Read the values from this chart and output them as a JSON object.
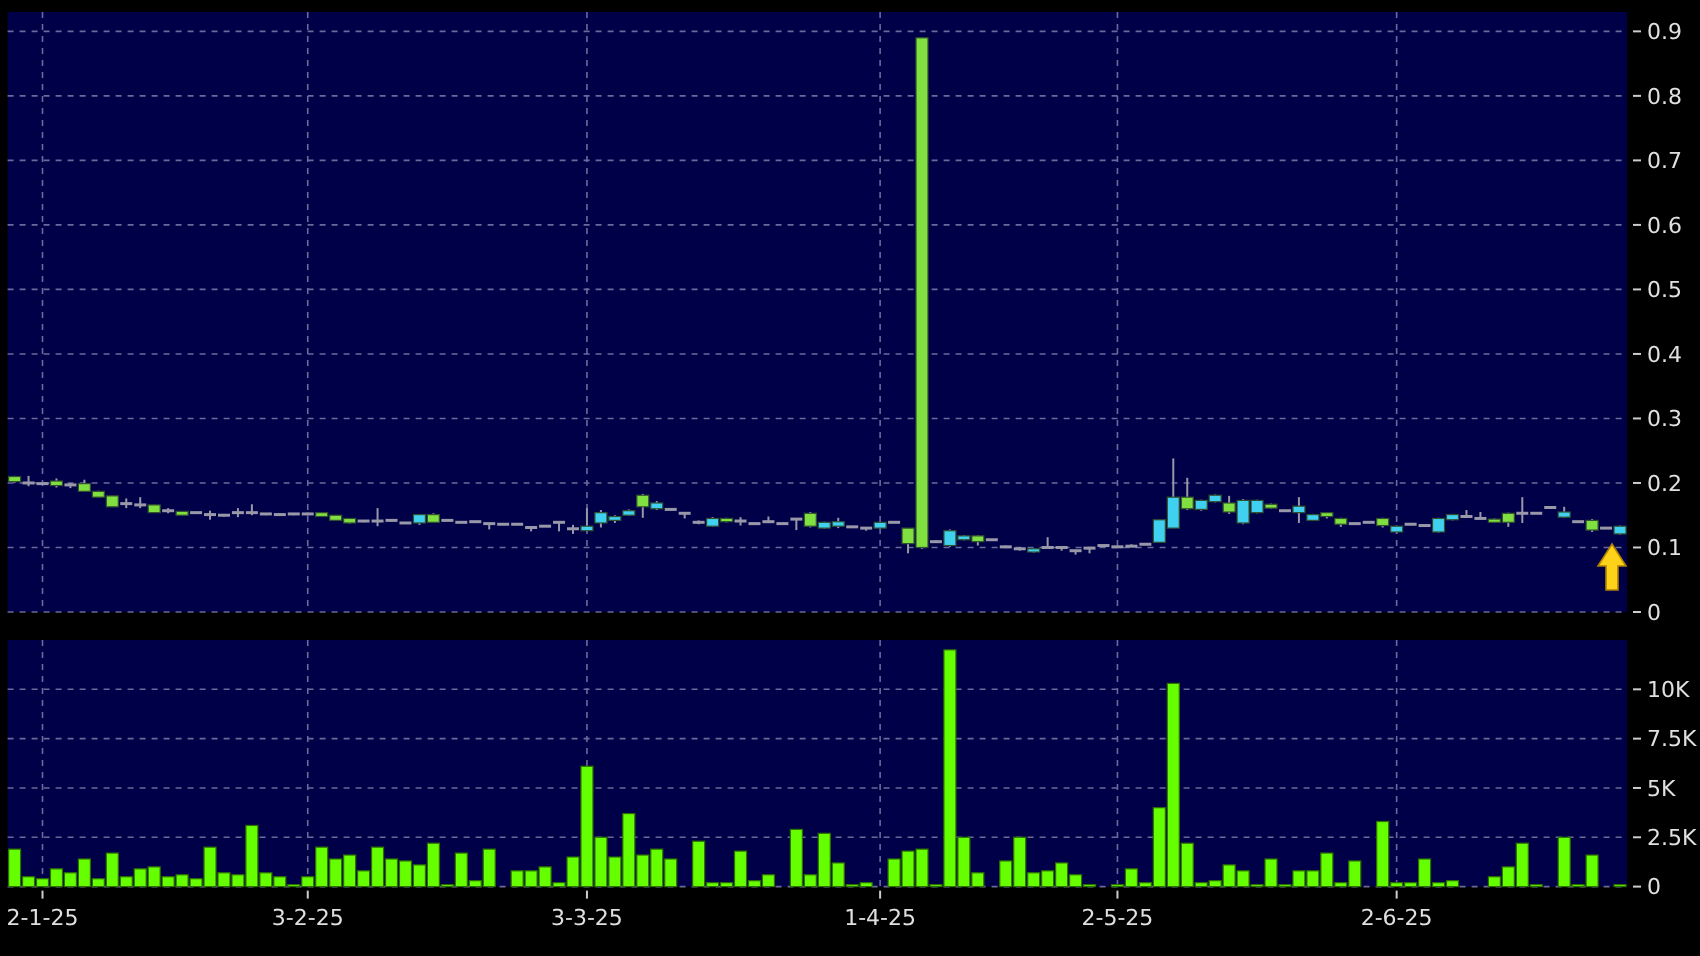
{
  "chart_data": [
    {
      "type": "candlestick",
      "tick_labels": "y",
      "grid": true,
      "ylim": [
        0,
        0.93
      ],
      "yticks": [
        0,
        0.1,
        0.2,
        0.3,
        0.4,
        0.5,
        0.6,
        0.7,
        0.8,
        0.9
      ],
      "categories": [
        null,
        null,
        null,
        null,
        null,
        null,
        null,
        null,
        null,
        null,
        null,
        null,
        null,
        null,
        null,
        null,
        null,
        null,
        null,
        null,
        null,
        null,
        null,
        null,
        null,
        null,
        null,
        null,
        null,
        null,
        null,
        null,
        null,
        null,
        null,
        null,
        null,
        null,
        null,
        null,
        null,
        null,
        null,
        null,
        null,
        null,
        null,
        null,
        null,
        null,
        null,
        null,
        null,
        null,
        null,
        null,
        null,
        null,
        null,
        null,
        null,
        null,
        null,
        null,
        null,
        null,
        null,
        null,
        null,
        null,
        null,
        null,
        null,
        null,
        null,
        null,
        null,
        null,
        null,
        null,
        null,
        null,
        null,
        null,
        null,
        null,
        null,
        null,
        null,
        null,
        null,
        null,
        null,
        null,
        null,
        null,
        null,
        null,
        null,
        null,
        null,
        null,
        null,
        null,
        null,
        null,
        null,
        null,
        null,
        null,
        null,
        null,
        null,
        null,
        null,
        null
      ],
      "ohlc": [
        [
          0.21,
          0.211,
          0.2,
          0.202
        ],
        [
          0.2,
          0.211,
          0.195,
          0.2
        ],
        [
          0.199,
          0.201,
          0.197,
          0.199
        ],
        [
          0.203,
          0.207,
          0.193,
          0.196
        ],
        [
          0.197,
          0.2,
          0.192,
          0.197
        ],
        [
          0.199,
          0.205,
          0.187,
          0.187
        ],
        [
          0.187,
          0.188,
          0.178,
          0.178
        ],
        [
          0.18,
          0.18,
          0.163,
          0.163
        ],
        [
          0.168,
          0.176,
          0.161,
          0.168
        ],
        [
          0.166,
          0.178,
          0.161,
          0.166
        ],
        [
          0.166,
          0.166,
          0.154,
          0.154
        ],
        [
          0.157,
          0.161,
          0.153,
          0.157
        ],
        [
          0.156,
          0.156,
          0.15,
          0.15
        ],
        [
          0.154,
          0.155,
          0.153,
          0.154
        ],
        [
          0.151,
          0.157,
          0.143,
          0.151
        ],
        [
          0.15,
          0.152,
          0.148,
          0.15
        ],
        [
          0.154,
          0.161,
          0.147,
          0.154
        ],
        [
          0.154,
          0.167,
          0.15,
          0.154
        ],
        [
          0.152,
          0.153,
          0.15,
          0.152
        ],
        [
          0.151,
          0.153,
          0.149,
          0.151
        ],
        [
          0.152,
          0.153,
          0.15,
          0.152
        ],
        [
          0.152,
          0.154,
          0.15,
          0.152
        ],
        [
          0.154,
          0.154,
          0.148,
          0.148
        ],
        [
          0.15,
          0.15,
          0.142,
          0.142
        ],
        [
          0.145,
          0.145,
          0.137,
          0.138
        ],
        [
          0.141,
          0.142,
          0.139,
          0.141
        ],
        [
          0.141,
          0.161,
          0.133,
          0.141
        ],
        [
          0.142,
          0.143,
          0.14,
          0.142
        ],
        [
          0.138,
          0.139,
          0.137,
          0.138
        ],
        [
          0.138,
          0.151,
          0.135,
          0.151
        ],
        [
          0.151,
          0.153,
          0.139,
          0.139
        ],
        [
          0.142,
          0.143,
          0.141,
          0.142
        ],
        [
          0.139,
          0.14,
          0.138,
          0.139
        ],
        [
          0.14,
          0.141,
          0.139,
          0.14
        ],
        [
          0.137,
          0.138,
          0.128,
          0.137
        ],
        [
          0.136,
          0.137,
          0.135,
          0.136
        ],
        [
          0.136,
          0.137,
          0.135,
          0.136
        ],
        [
          0.131,
          0.132,
          0.125,
          0.131
        ],
        [
          0.133,
          0.134,
          0.132,
          0.133
        ],
        [
          0.139,
          0.14,
          0.125,
          0.139
        ],
        [
          0.129,
          0.135,
          0.121,
          0.129
        ],
        [
          0.126,
          0.161,
          0.125,
          0.133
        ],
        [
          0.138,
          0.158,
          0.131,
          0.154
        ],
        [
          0.142,
          0.15,
          0.138,
          0.148
        ],
        [
          0.15,
          0.159,
          0.149,
          0.157
        ],
        [
          0.181,
          0.183,
          0.146,
          0.163
        ],
        [
          0.16,
          0.172,
          0.158,
          0.169
        ],
        [
          0.159,
          0.16,
          0.158,
          0.159
        ],
        [
          0.153,
          0.155,
          0.145,
          0.153
        ],
        [
          0.139,
          0.142,
          0.136,
          0.139
        ],
        [
          0.133,
          0.147,
          0.132,
          0.145
        ],
        [
          0.145,
          0.146,
          0.139,
          0.14
        ],
        [
          0.141,
          0.147,
          0.134,
          0.141
        ],
        [
          0.137,
          0.138,
          0.136,
          0.137
        ],
        [
          0.14,
          0.148,
          0.139,
          0.14
        ],
        [
          0.137,
          0.138,
          0.136,
          0.137
        ],
        [
          0.144,
          0.145,
          0.127,
          0.144
        ],
        [
          0.153,
          0.155,
          0.131,
          0.133
        ],
        [
          0.13,
          0.14,
          0.129,
          0.139
        ],
        [
          0.133,
          0.146,
          0.13,
          0.14
        ],
        [
          0.132,
          0.133,
          0.131,
          0.132
        ],
        [
          0.13,
          0.131,
          0.126,
          0.13
        ],
        [
          0.13,
          0.14,
          0.129,
          0.139
        ],
        [
          0.139,
          0.14,
          0.138,
          0.139
        ],
        [
          0.13,
          0.13,
          0.091,
          0.106
        ],
        [
          0.89,
          0.89,
          0.098,
          0.1
        ],
        [
          0.109,
          0.111,
          0.108,
          0.109
        ],
        [
          0.103,
          0.128,
          0.101,
          0.126
        ],
        [
          0.112,
          0.119,
          0.111,
          0.118
        ],
        [
          0.118,
          0.119,
          0.103,
          0.109
        ],
        [
          0.112,
          0.113,
          0.111,
          0.112
        ],
        [
          0.101,
          0.103,
          0.1,
          0.101
        ],
        [
          0.098,
          0.1,
          0.095,
          0.098
        ],
        [
          0.093,
          0.099,
          0.092,
          0.098
        ],
        [
          0.1,
          0.116,
          0.099,
          0.1
        ],
        [
          0.1,
          0.101,
          0.095,
          0.1
        ],
        [
          0.095,
          0.096,
          0.089,
          0.095
        ],
        [
          0.099,
          0.1,
          0.091,
          0.099
        ],
        [
          0.103,
          0.104,
          0.102,
          0.103
        ],
        [
          0.101,
          0.102,
          0.1,
          0.101
        ],
        [
          0.102,
          0.105,
          0.101,
          0.102
        ],
        [
          0.105,
          0.106,
          0.104,
          0.105
        ],
        [
          0.108,
          0.143,
          0.108,
          0.143
        ],
        [
          0.13,
          0.238,
          0.13,
          0.178
        ],
        [
          0.178,
          0.208,
          0.158,
          0.16
        ],
        [
          0.159,
          0.174,
          0.157,
          0.173
        ],
        [
          0.171,
          0.182,
          0.17,
          0.181
        ],
        [
          0.169,
          0.18,
          0.152,
          0.155
        ],
        [
          0.138,
          0.175,
          0.136,
          0.173
        ],
        [
          0.154,
          0.174,
          0.153,
          0.173
        ],
        [
          0.167,
          0.168,
          0.16,
          0.161
        ],
        [
          0.157,
          0.158,
          0.156,
          0.157
        ],
        [
          0.154,
          0.178,
          0.138,
          0.164
        ],
        [
          0.142,
          0.152,
          0.141,
          0.151
        ],
        [
          0.154,
          0.155,
          0.145,
          0.148
        ],
        [
          0.145,
          0.146,
          0.132,
          0.136
        ],
        [
          0.137,
          0.138,
          0.136,
          0.137
        ],
        [
          0.139,
          0.14,
          0.138,
          0.139
        ],
        [
          0.145,
          0.146,
          0.131,
          0.134
        ],
        [
          0.124,
          0.134,
          0.122,
          0.133
        ],
        [
          0.136,
          0.137,
          0.135,
          0.136
        ],
        [
          0.134,
          0.135,
          0.133,
          0.134
        ],
        [
          0.124,
          0.146,
          0.123,
          0.145
        ],
        [
          0.143,
          0.152,
          0.142,
          0.151
        ],
        [
          0.148,
          0.158,
          0.146,
          0.148
        ],
        [
          0.145,
          0.155,
          0.144,
          0.145
        ],
        [
          0.144,
          0.145,
          0.138,
          0.139
        ],
        [
          0.153,
          0.154,
          0.132,
          0.139
        ],
        [
          0.153,
          0.178,
          0.138,
          0.153
        ],
        [
          0.153,
          0.154,
          0.152,
          0.153
        ],
        [
          0.162,
          0.163,
          0.161,
          0.162
        ],
        [
          0.147,
          0.163,
          0.146,
          0.155
        ],
        [
          0.14,
          0.141,
          0.139,
          0.14
        ],
        [
          0.142,
          0.144,
          0.124,
          0.127
        ],
        [
          0.13,
          0.131,
          0.129,
          0.13
        ],
        [
          0.121,
          0.134,
          0.12,
          0.133
        ]
      ],
      "colors": [
        "#80e040",
        "#9898a8",
        "#9898a8",
        "#80e040",
        "#9898a8",
        "#80e040",
        "#80e040",
        "#80e040",
        "#9898a8",
        "#9898a8",
        "#80e040",
        "#9898a8",
        "#80e040",
        "#9898a8",
        "#9898a8",
        "#9898a8",
        "#9898a8",
        "#9898a8",
        "#9898a8",
        "#9898a8",
        "#9898a8",
        "#9898a8",
        "#80e040",
        "#80e040",
        "#80e040",
        "#9898a8",
        "#9898a8",
        "#9898a8",
        "#9898a8",
        "#40d0f0",
        "#80e040",
        "#9898a8",
        "#9898a8",
        "#9898a8",
        "#9898a8",
        "#9898a8",
        "#9898a8",
        "#9898a8",
        "#9898a8",
        "#9898a8",
        "#9898a8",
        "#40d0f0",
        "#40d0f0",
        "#40d0f0",
        "#40d0f0",
        "#80e040",
        "#40d0f0",
        "#9898a8",
        "#9898a8",
        "#9898a8",
        "#40d0f0",
        "#80e040",
        "#9898a8",
        "#9898a8",
        "#9898a8",
        "#9898a8",
        "#9898a8",
        "#80e040",
        "#40d0f0",
        "#40d0f0",
        "#9898a8",
        "#9898a8",
        "#40d0f0",
        "#9898a8",
        "#80e040",
        "#80e040",
        "#9898a8",
        "#40d0f0",
        "#40d0f0",
        "#80e040",
        "#9898a8",
        "#9898a8",
        "#9898a8",
        "#40d0f0",
        "#9898a8",
        "#9898a8",
        "#9898a8",
        "#9898a8",
        "#9898a8",
        "#9898a8",
        "#9898a8",
        "#9898a8",
        "#40d0f0",
        "#40d0f0",
        "#80e040",
        "#40d0f0",
        "#40d0f0",
        "#80e040",
        "#40d0f0",
        "#40d0f0",
        "#80e040",
        "#9898a8",
        "#40d0f0",
        "#40d0f0",
        "#80e040",
        "#80e040",
        "#9898a8",
        "#9898a8",
        "#80e040",
        "#40d0f0",
        "#9898a8",
        "#9898a8",
        "#40d0f0",
        "#40d0f0",
        "#9898a8",
        "#9898a8",
        "#80e040",
        "#80e040",
        "#9898a8",
        "#9898a8",
        "#9898a8",
        "#40d0f0",
        "#9898a8",
        "#80e040",
        "#9898a8",
        "#40d0f0"
      ]
    },
    {
      "type": "bar",
      "grid": true,
      "color": "#66ff00",
      "ylim": [
        0,
        12500
      ],
      "yticks": [
        0,
        {
          "value": 2500,
          "label": "2.5K"
        },
        {
          "value": 5000,
          "label": "5K"
        },
        {
          "value": 7500,
          "label": "7.5K"
        },
        {
          "value": 10000,
          "label": "10K"
        }
      ],
      "categories": [
        null,
        null,
        "2-1-25",
        null,
        null,
        null,
        null,
        null,
        null,
        null,
        null,
        null,
        null,
        null,
        null,
        null,
        null,
        null,
        null,
        null,
        null,
        "3-2-25",
        null,
        null,
        null,
        null,
        null,
        null,
        null,
        null,
        null,
        null,
        null,
        null,
        null,
        null,
        null,
        null,
        null,
        null,
        null,
        "3-3-25",
        null,
        null,
        null,
        null,
        null,
        null,
        null,
        null,
        null,
        null,
        null,
        null,
        null,
        null,
        null,
        null,
        null,
        null,
        null,
        null,
        "1-4-25",
        null,
        null,
        null,
        null,
        null,
        null,
        null,
        null,
        null,
        null,
        null,
        null,
        null,
        null,
        null,
        null,
        "2-5-25",
        null,
        null,
        null,
        null,
        null,
        null,
        null,
        null,
        null,
        null,
        null,
        null,
        null,
        null,
        null,
        null,
        null,
        null,
        null,
        "2-6-25",
        null,
        null,
        null,
        null,
        null,
        null,
        null,
        null,
        null,
        null,
        null,
        null,
        null,
        null,
        null,
        null
      ],
      "values": [
        1900,
        500,
        400,
        900,
        700,
        1400,
        400,
        1700,
        500,
        900,
        1000,
        500,
        600,
        400,
        2000,
        700,
        600,
        3100,
        700,
        500,
        100,
        500,
        2000,
        1400,
        1600,
        800,
        2000,
        1400,
        1300,
        1100,
        2200,
        100,
        1700,
        300,
        1900,
        0,
        800,
        800,
        1000,
        200,
        1500,
        6100,
        2500,
        1500,
        3700,
        1600,
        1900,
        1400,
        0,
        2300,
        200,
        200,
        1800,
        300,
        600,
        0,
        2900,
        600,
        2700,
        1200,
        100,
        200,
        0,
        1400,
        1800,
        1900,
        100,
        12000,
        2500,
        700,
        0,
        1300,
        2500,
        700,
        800,
        1200,
        600,
        100,
        0,
        100,
        900,
        200,
        4000,
        10300,
        2200,
        200,
        300,
        1100,
        800,
        100,
        1400,
        100,
        800,
        800,
        1700,
        200,
        1300,
        0,
        3300,
        200,
        200,
        1400,
        200,
        300,
        0,
        0,
        500,
        1000,
        2200,
        100,
        0,
        2500,
        100,
        1600,
        0,
        100
      ]
    }
  ]
}
